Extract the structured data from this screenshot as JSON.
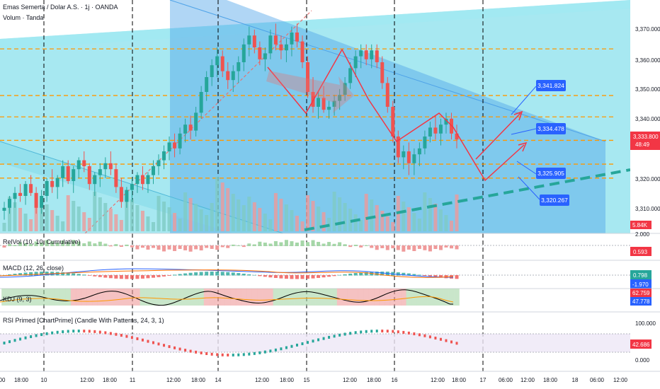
{
  "header": {
    "symbol_line": "Emas Semerta / Dolar A.S. · 1j · OANDA",
    "volume_label": "Volum · Tanda"
  },
  "colors": {
    "up": "#26a69a",
    "down": "#ef5350",
    "channel_light": "#5ed6e6",
    "channel_blue": "#4fa3e8",
    "level_orange": "#ff9800",
    "dashed_trend": "#26a69a",
    "path_red": "#f23645",
    "badge_blue": "#2962ff",
    "price_red": "#f23645"
  },
  "price_axis": {
    "ticks": [
      "3,370.000",
      "3,360.000",
      "3,350.000",
      "3,340.000",
      "3,320.000",
      "3,310.000"
    ],
    "current_price": "3,333.800",
    "countdown": "48:49",
    "volume_badge": "5.84K"
  },
  "levels": [
    3364.5,
    3348.8,
    3341.6,
    3333.7,
    3325.7,
    3321.0
  ],
  "target_labels": [
    "3,341.824",
    "3,334.478",
    "3,325.905",
    "3,320.267"
  ],
  "indicators": {
    "relvol": {
      "label": "RelVol (10, 10, Cumulative)",
      "scale_top": "2.000",
      "value": "0.593"
    },
    "macd": {
      "label": "MACD (12, 26, close)",
      "value1": "0.798",
      "value2": "-1.970"
    },
    "kdj": {
      "label": "KDJ (9, 3)",
      "value1": "62.759",
      "value2": "47.778"
    },
    "rsi": {
      "label": "RSI Primed [ChartPrime] (Candle With Patterns, 24, 3, 1)",
      "top": "100.000",
      "bottom": "0.000",
      "value": "42.686"
    }
  },
  "time_axis": {
    "labels": [
      "00",
      "18:00",
      "10",
      "12:00",
      "18:00",
      "11",
      "12:00",
      "18:00",
      "14",
      "12:00",
      "18:00",
      "15",
      "12:00",
      "18:00",
      "16",
      "12:00",
      "18:00",
      "17",
      "06:00",
      "12:00",
      "18:00",
      "18",
      "06:00",
      "12:00"
    ]
  },
  "chart_data": {
    "type": "candlestick",
    "y_range": [
      3303,
      3374
    ],
    "candles": [
      [
        3310,
        3313,
        3307,
        3311
      ],
      [
        3311,
        3315,
        3309,
        3314
      ],
      [
        3314,
        3318,
        3311,
        3316
      ],
      [
        3316,
        3319,
        3313,
        3315
      ],
      [
        3315,
        3320,
        3312,
        3319
      ],
      [
        3319,
        3322,
        3315,
        3316
      ],
      [
        3316,
        3318,
        3309,
        3311
      ],
      [
        3311,
        3317,
        3309,
        3315
      ],
      [
        3315,
        3321,
        3313,
        3320
      ],
      [
        3320,
        3324,
        3316,
        3318
      ],
      [
        3318,
        3322,
        3314,
        3321
      ],
      [
        3321,
        3327,
        3318,
        3325
      ],
      [
        3325,
        3327,
        3319,
        3320
      ],
      [
        3320,
        3325,
        3316,
        3324
      ],
      [
        3324,
        3328,
        3321,
        3327
      ],
      [
        3327,
        3330,
        3323,
        3325
      ],
      [
        3325,
        3326,
        3317,
        3319
      ],
      [
        3319,
        3323,
        3315,
        3322
      ],
      [
        3322,
        3326,
        3318,
        3324
      ],
      [
        3324,
        3328,
        3321,
        3326
      ],
      [
        3326,
        3330,
        3322,
        3324
      ],
      [
        3324,
        3326,
        3316,
        3318
      ],
      [
        3318,
        3321,
        3311,
        3313
      ],
      [
        3313,
        3318,
        3311,
        3317
      ],
      [
        3317,
        3321,
        3313,
        3319
      ],
      [
        3319,
        3323,
        3316,
        3322
      ],
      [
        3322,
        3325,
        3317,
        3319
      ],
      [
        3319,
        3323,
        3316,
        3322
      ],
      [
        3322,
        3327,
        3319,
        3325
      ],
      [
        3325,
        3329,
        3322,
        3327
      ],
      [
        3327,
        3332,
        3324,
        3330
      ],
      [
        3330,
        3335,
        3327,
        3333
      ],
      [
        3333,
        3336,
        3328,
        3331
      ],
      [
        3331,
        3338,
        3329,
        3336
      ],
      [
        3336,
        3341,
        3333,
        3339
      ],
      [
        3339,
        3342,
        3334,
        3337
      ],
      [
        3337,
        3345,
        3335,
        3343
      ],
      [
        3343,
        3352,
        3341,
        3350
      ],
      [
        3350,
        3357,
        3347,
        3355
      ],
      [
        3355,
        3361,
        3352,
        3359
      ],
      [
        3359,
        3365,
        3355,
        3362
      ],
      [
        3362,
        3364,
        3355,
        3357
      ],
      [
        3357,
        3360,
        3351,
        3354
      ],
      [
        3354,
        3359,
        3350,
        3357
      ],
      [
        3357,
        3362,
        3353,
        3360
      ],
      [
        3360,
        3368,
        3357,
        3366
      ],
      [
        3366,
        3372,
        3362,
        3369
      ],
      [
        3369,
        3371,
        3363,
        3365
      ],
      [
        3365,
        3367,
        3359,
        3361
      ],
      [
        3361,
        3365,
        3357,
        3363
      ],
      [
        3363,
        3371,
        3361,
        3369
      ],
      [
        3369,
        3373,
        3364,
        3366
      ],
      [
        3366,
        3369,
        3361,
        3364
      ],
      [
        3364,
        3368,
        3360,
        3366
      ],
      [
        3366,
        3372,
        3362,
        3370
      ],
      [
        3370,
        3373,
        3365,
        3367
      ],
      [
        3367,
        3369,
        3358,
        3360
      ],
      [
        3360,
        3362,
        3348,
        3350
      ],
      [
        3350,
        3355,
        3343,
        3345
      ],
      [
        3345,
        3350,
        3341,
        3348
      ],
      [
        3348,
        3352,
        3343,
        3344
      ],
      [
        3344,
        3347,
        3341,
        3345
      ],
      [
        3345,
        3349,
        3342,
        3347
      ],
      [
        3347,
        3351,
        3344,
        3349
      ],
      [
        3349,
        3355,
        3347,
        3353
      ],
      [
        3353,
        3360,
        3351,
        3358
      ],
      [
        3358,
        3364,
        3355,
        3362
      ],
      [
        3362,
        3366,
        3358,
        3364
      ],
      [
        3364,
        3366,
        3359,
        3361
      ],
      [
        3361,
        3366,
        3358,
        3364
      ],
      [
        3364,
        3366,
        3358,
        3360
      ],
      [
        3360,
        3362,
        3351,
        3353
      ],
      [
        3353,
        3355,
        3343,
        3345
      ],
      [
        3345,
        3347,
        3333,
        3335
      ],
      [
        3335,
        3337,
        3326,
        3328
      ],
      [
        3328,
        3332,
        3324,
        3330
      ],
      [
        3330,
        3333,
        3322,
        3326
      ],
      [
        3326,
        3331,
        3322,
        3329
      ],
      [
        3329,
        3333,
        3325,
        3331
      ],
      [
        3331,
        3337,
        3329,
        3335
      ],
      [
        3335,
        3340,
        3333,
        3338
      ],
      [
        3338,
        3342,
        3334,
        3336
      ],
      [
        3336,
        3341,
        3332,
        3339
      ],
      [
        3339,
        3343,
        3336,
        3341
      ],
      [
        3341,
        3343,
        3334,
        3336
      ],
      [
        3336,
        3339,
        3331,
        3334
      ]
    ]
  }
}
